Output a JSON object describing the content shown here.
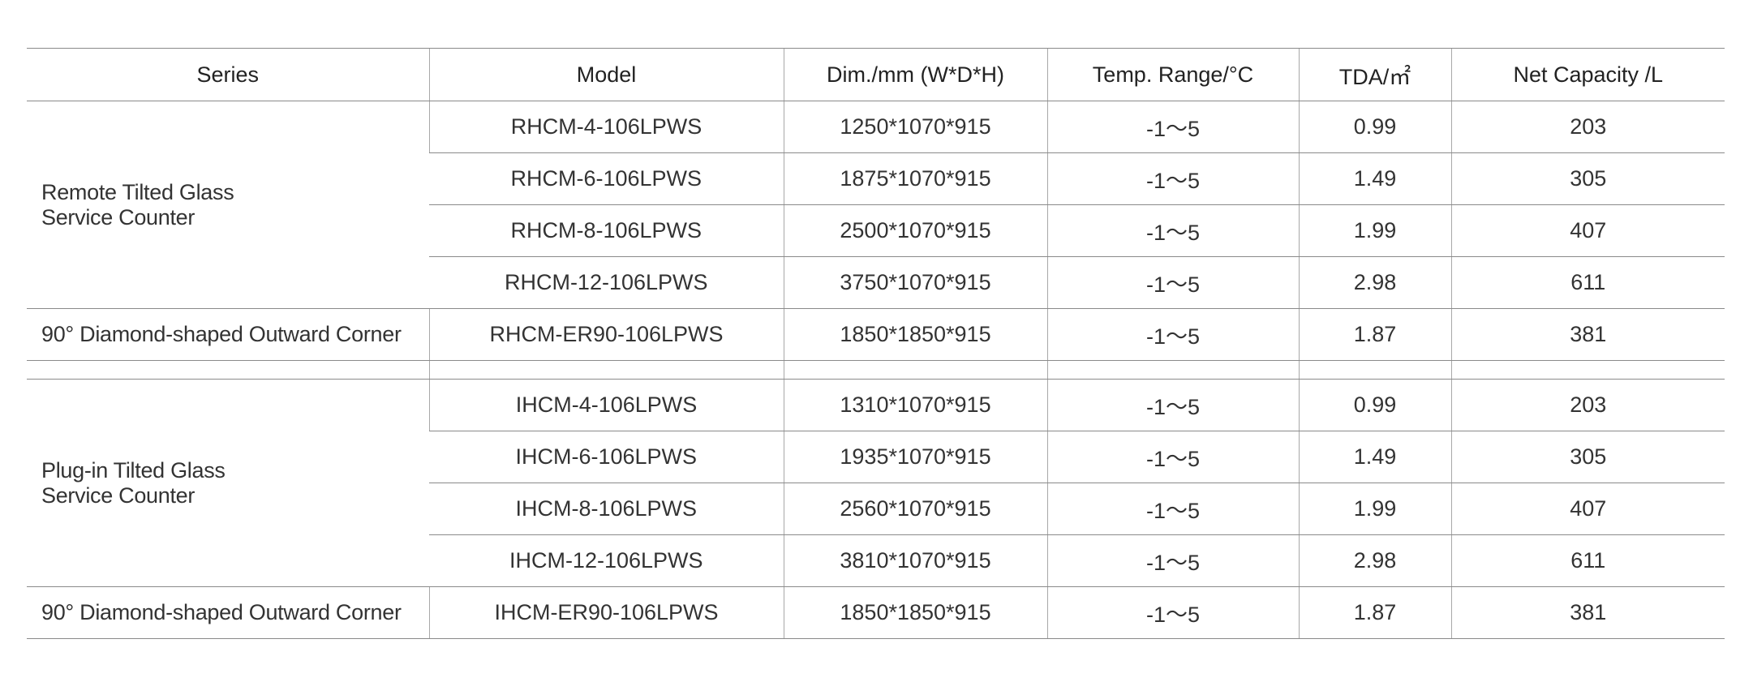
{
  "table": {
    "header": [
      "Series",
      "Model",
      "Dim./mm (W*D*H)",
      "Temp. Range/°C",
      "TDA/㎡",
      "Net Capacity /L"
    ],
    "groups": [
      [
        {
          "series": [
            "Remote Tilted Glass",
            "Service Counter"
          ],
          "rows": [
            [
              "RHCM-4-106LPWS",
              "1250*1070*915",
              "-1～5",
              "0.99",
              "203"
            ],
            [
              "RHCM-6-106LPWS",
              "1875*1070*915",
              "-1～5",
              "1.49",
              "305"
            ],
            [
              "RHCM-8-106LPWS",
              "2500*1070*915",
              "-1～5",
              "1.99",
              "407"
            ],
            [
              "RHCM-12-106LPWS",
              "3750*1070*915",
              "-1～5",
              "2.98",
              "611"
            ]
          ]
        },
        {
          "series": [
            "90° Diamond-shaped Outward Corner"
          ],
          "rows": [
            [
              "RHCM-ER90-106LPWS",
              "1850*1850*915",
              "-1～5",
              "1.87",
              "381"
            ]
          ]
        }
      ],
      [
        {
          "series": [
            "Plug-in Tilted Glass",
            "Service Counter"
          ],
          "rows": [
            [
              "IHCM-4-106LPWS",
              "1310*1070*915",
              "-1～5",
              "0.99",
              "203"
            ],
            [
              "IHCM-6-106LPWS",
              "1935*1070*915",
              "-1～5",
              "1.49",
              "305"
            ],
            [
              "IHCM-8-106LPWS",
              "2560*1070*915",
              "-1～5",
              "1.99",
              "407"
            ],
            [
              "IHCM-12-106LPWS",
              "3810*1070*915",
              "-1～5",
              "2.98",
              "611"
            ]
          ]
        },
        {
          "series": [
            "90° Diamond-shaped Outward Corner"
          ],
          "rows": [
            [
              "IHCM-ER90-106LPWS",
              "1850*1850*915",
              "-1～5",
              "1.87",
              "381"
            ]
          ]
        }
      ]
    ]
  }
}
